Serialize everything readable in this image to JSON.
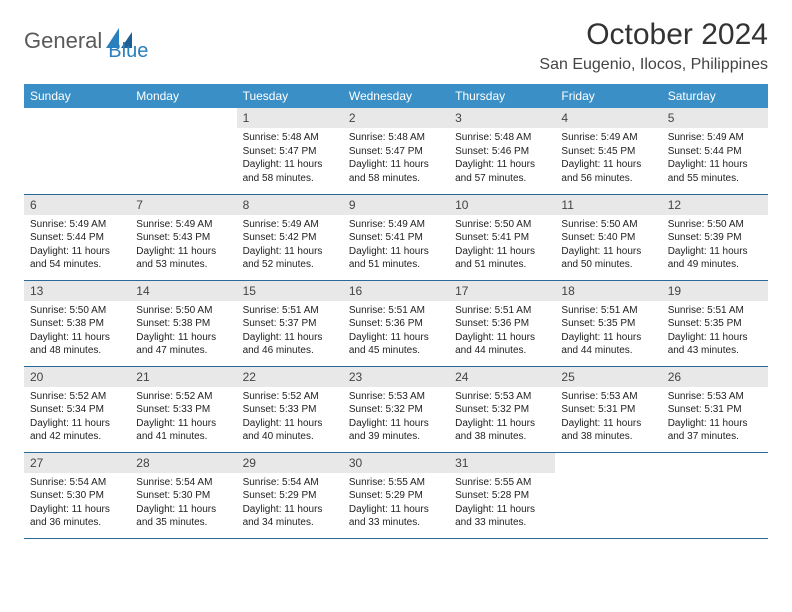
{
  "brand": {
    "part1": "General",
    "part2": "Blue"
  },
  "title": "October 2024",
  "location": "San Eugenio, Ilocos, Philippines",
  "colors": {
    "header_bg": "#3b8fc7",
    "header_fg": "#ffffff",
    "row_border": "#2a6a9a",
    "daynum_bg": "#e8e8e8",
    "logo_gray": "#5a5a5a",
    "logo_blue": "#2a7fbf",
    "page_bg": "#ffffff"
  },
  "typography": {
    "month_title_fontsize": 30,
    "location_fontsize": 16,
    "dayheader_fontsize": 12,
    "daynum_fontsize": 12,
    "body_fontsize": 10
  },
  "layout": {
    "columns": 7,
    "rows": 5,
    "leading_blanks": 2
  },
  "day_labels": [
    "Sunday",
    "Monday",
    "Tuesday",
    "Wednesday",
    "Thursday",
    "Friday",
    "Saturday"
  ],
  "days": [
    {
      "n": 1,
      "sunrise": "5:48 AM",
      "sunset": "5:47 PM",
      "daylight": "11 hours and 58 minutes."
    },
    {
      "n": 2,
      "sunrise": "5:48 AM",
      "sunset": "5:47 PM",
      "daylight": "11 hours and 58 minutes."
    },
    {
      "n": 3,
      "sunrise": "5:48 AM",
      "sunset": "5:46 PM",
      "daylight": "11 hours and 57 minutes."
    },
    {
      "n": 4,
      "sunrise": "5:49 AM",
      "sunset": "5:45 PM",
      "daylight": "11 hours and 56 minutes."
    },
    {
      "n": 5,
      "sunrise": "5:49 AM",
      "sunset": "5:44 PM",
      "daylight": "11 hours and 55 minutes."
    },
    {
      "n": 6,
      "sunrise": "5:49 AM",
      "sunset": "5:44 PM",
      "daylight": "11 hours and 54 minutes."
    },
    {
      "n": 7,
      "sunrise": "5:49 AM",
      "sunset": "5:43 PM",
      "daylight": "11 hours and 53 minutes."
    },
    {
      "n": 8,
      "sunrise": "5:49 AM",
      "sunset": "5:42 PM",
      "daylight": "11 hours and 52 minutes."
    },
    {
      "n": 9,
      "sunrise": "5:49 AM",
      "sunset": "5:41 PM",
      "daylight": "11 hours and 51 minutes."
    },
    {
      "n": 10,
      "sunrise": "5:50 AM",
      "sunset": "5:41 PM",
      "daylight": "11 hours and 51 minutes."
    },
    {
      "n": 11,
      "sunrise": "5:50 AM",
      "sunset": "5:40 PM",
      "daylight": "11 hours and 50 minutes."
    },
    {
      "n": 12,
      "sunrise": "5:50 AM",
      "sunset": "5:39 PM",
      "daylight": "11 hours and 49 minutes."
    },
    {
      "n": 13,
      "sunrise": "5:50 AM",
      "sunset": "5:38 PM",
      "daylight": "11 hours and 48 minutes."
    },
    {
      "n": 14,
      "sunrise": "5:50 AM",
      "sunset": "5:38 PM",
      "daylight": "11 hours and 47 minutes."
    },
    {
      "n": 15,
      "sunrise": "5:51 AM",
      "sunset": "5:37 PM",
      "daylight": "11 hours and 46 minutes."
    },
    {
      "n": 16,
      "sunrise": "5:51 AM",
      "sunset": "5:36 PM",
      "daylight": "11 hours and 45 minutes."
    },
    {
      "n": 17,
      "sunrise": "5:51 AM",
      "sunset": "5:36 PM",
      "daylight": "11 hours and 44 minutes."
    },
    {
      "n": 18,
      "sunrise": "5:51 AM",
      "sunset": "5:35 PM",
      "daylight": "11 hours and 44 minutes."
    },
    {
      "n": 19,
      "sunrise": "5:51 AM",
      "sunset": "5:35 PM",
      "daylight": "11 hours and 43 minutes."
    },
    {
      "n": 20,
      "sunrise": "5:52 AM",
      "sunset": "5:34 PM",
      "daylight": "11 hours and 42 minutes."
    },
    {
      "n": 21,
      "sunrise": "5:52 AM",
      "sunset": "5:33 PM",
      "daylight": "11 hours and 41 minutes."
    },
    {
      "n": 22,
      "sunrise": "5:52 AM",
      "sunset": "5:33 PM",
      "daylight": "11 hours and 40 minutes."
    },
    {
      "n": 23,
      "sunrise": "5:53 AM",
      "sunset": "5:32 PM",
      "daylight": "11 hours and 39 minutes."
    },
    {
      "n": 24,
      "sunrise": "5:53 AM",
      "sunset": "5:32 PM",
      "daylight": "11 hours and 38 minutes."
    },
    {
      "n": 25,
      "sunrise": "5:53 AM",
      "sunset": "5:31 PM",
      "daylight": "11 hours and 38 minutes."
    },
    {
      "n": 26,
      "sunrise": "5:53 AM",
      "sunset": "5:31 PM",
      "daylight": "11 hours and 37 minutes."
    },
    {
      "n": 27,
      "sunrise": "5:54 AM",
      "sunset": "5:30 PM",
      "daylight": "11 hours and 36 minutes."
    },
    {
      "n": 28,
      "sunrise": "5:54 AM",
      "sunset": "5:30 PM",
      "daylight": "11 hours and 35 minutes."
    },
    {
      "n": 29,
      "sunrise": "5:54 AM",
      "sunset": "5:29 PM",
      "daylight": "11 hours and 34 minutes."
    },
    {
      "n": 30,
      "sunrise": "5:55 AM",
      "sunset": "5:29 PM",
      "daylight": "11 hours and 33 minutes."
    },
    {
      "n": 31,
      "sunrise": "5:55 AM",
      "sunset": "5:28 PM",
      "daylight": "11 hours and 33 minutes."
    }
  ],
  "labels": {
    "sunrise": "Sunrise:",
    "sunset": "Sunset:",
    "daylight": "Daylight:"
  }
}
